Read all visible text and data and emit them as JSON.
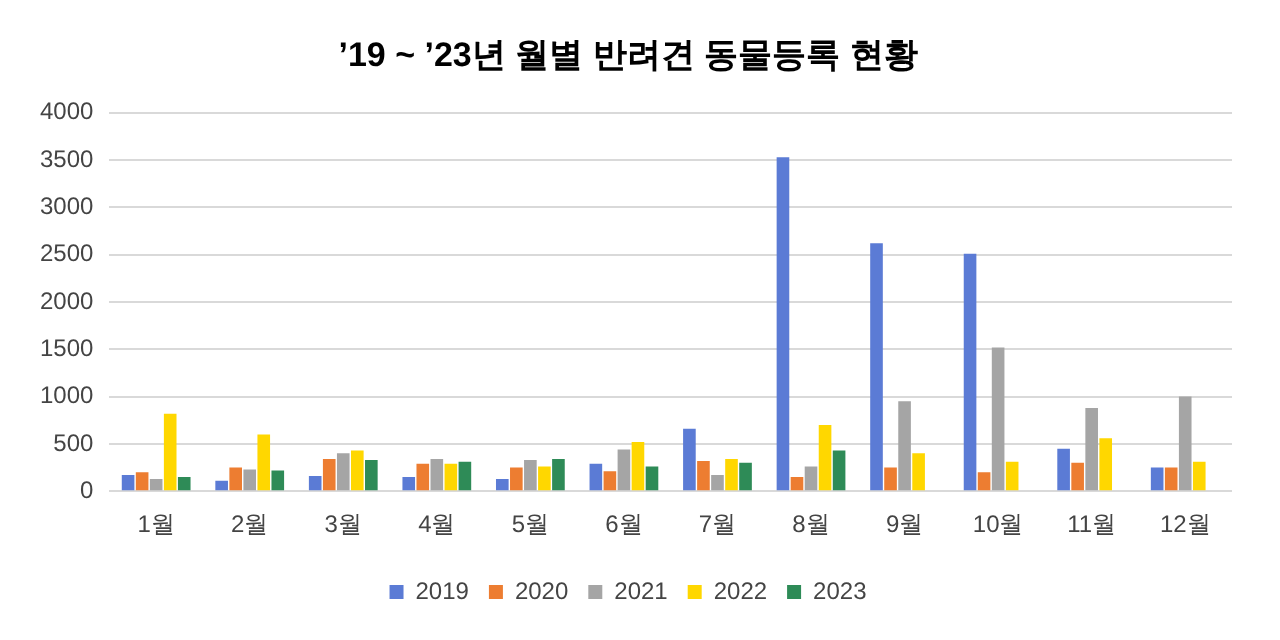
{
  "chart_data": {
    "type": "bar",
    "title": "’19 ~ ’23년 월별 반려견 동물등록 현황",
    "categories": [
      "1월",
      "2월",
      "3월",
      "4월",
      "5월",
      "6월",
      "7월",
      "8월",
      "9월",
      "10월",
      "11월",
      "12월"
    ],
    "series": [
      {
        "name": "2019",
        "color": "#5b7bd5",
        "values": [
          170,
          110,
          160,
          150,
          130,
          290,
          660,
          3530,
          2620,
          2510,
          450,
          250
        ]
      },
      {
        "name": "2020",
        "color": "#ed7d31",
        "values": [
          200,
          250,
          340,
          290,
          250,
          210,
          320,
          150,
          250,
          200,
          300,
          250
        ]
      },
      {
        "name": "2021",
        "color": "#a5a5a5",
        "values": [
          130,
          230,
          400,
          340,
          330,
          440,
          170,
          260,
          950,
          1520,
          880,
          1000
        ]
      },
      {
        "name": "2022",
        "color": "#ffd700",
        "values": [
          820,
          600,
          430,
          290,
          260,
          520,
          340,
          700,
          400,
          310,
          560,
          310
        ]
      },
      {
        "name": "2023",
        "color": "#2e8b57",
        "values": [
          150,
          220,
          330,
          310,
          340,
          260,
          300,
          430,
          null,
          null,
          null,
          null
        ]
      }
    ],
    "ylim": [
      0,
      4000
    ],
    "yticks": [
      0,
      500,
      1000,
      1500,
      2000,
      2500,
      3000,
      3500,
      4000
    ],
    "grid": "y",
    "legend": "bottom"
  }
}
